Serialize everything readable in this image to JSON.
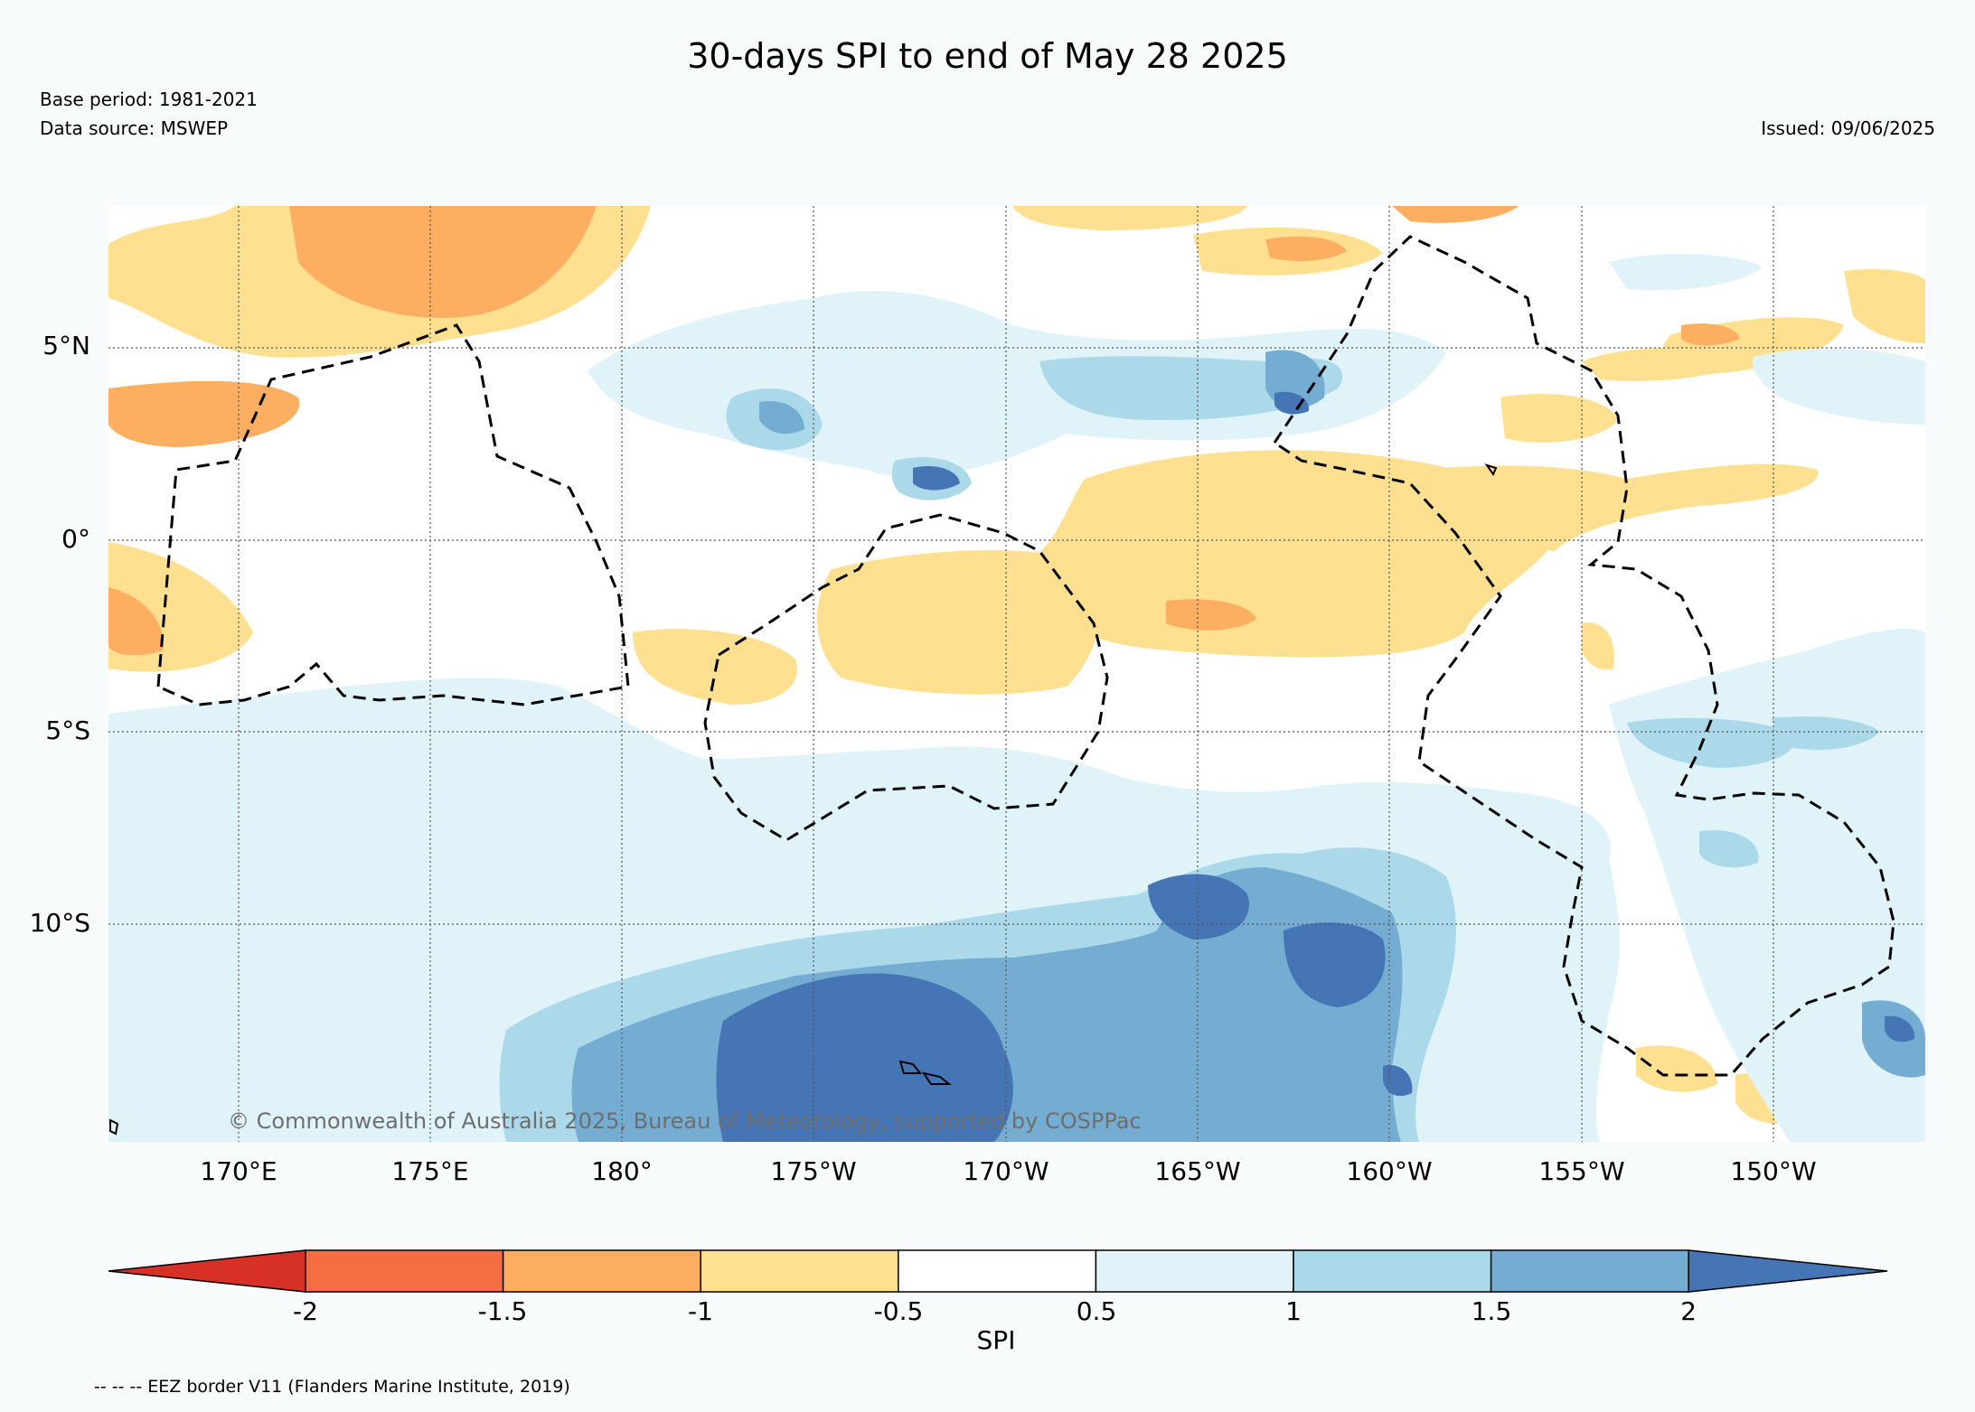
{
  "header": {
    "title": "30-days SPI to end of May 28 2025",
    "base_period": "Base period: 1981-2021",
    "data_source": "Data source: MSWEP",
    "issued": "Issued: 09/06/2025"
  },
  "map": {
    "lat_labels": [
      "5°N",
      "0°",
      "5°S",
      "10°S"
    ],
    "lon_labels": [
      "170°E",
      "175°E",
      "180°",
      "175°W",
      "170°W",
      "165°W",
      "160°W",
      "155°W",
      "150°W"
    ],
    "copyright": "© Commonwealth of Australia 2025, Bureau of Meteorology, supported by COSPPac",
    "eez_style": "dashed black",
    "grid": "dotted"
  },
  "colorbar": {
    "label": "SPI",
    "ticks": [
      "-2",
      "-1.5",
      "-1",
      "-0.5",
      "0.5",
      "1",
      "1.5",
      "2"
    ],
    "colors": [
      "#d73027",
      "#f46d43",
      "#fdae61",
      "#fee090",
      "#ffffff",
      "#e0f3f8",
      "#abd9e9",
      "#74add1",
      "#4575b4"
    ]
  },
  "footer": {
    "eez_note": "-- -- -- EEZ border V11 (Flanders Marine Institute, 2019)"
  }
}
